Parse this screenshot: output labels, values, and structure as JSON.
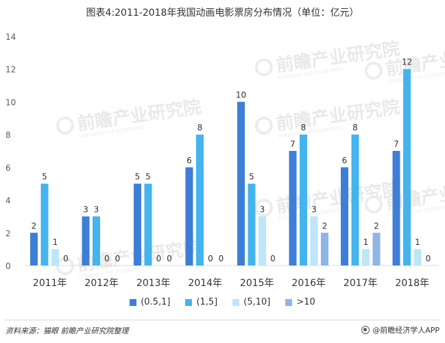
{
  "chart_data": {
    "type": "bar",
    "title": "图表4:2011-2018年我国动画电影票房分布情况（单位：亿元）",
    "categories": [
      "2011年",
      "2012年",
      "2013年",
      "2014年",
      "2015年",
      "2016年",
      "2017年",
      "2018年"
    ],
    "series": [
      {
        "name": "(0.5,1]",
        "color": "#3d7fd6",
        "values": [
          2,
          3,
          5,
          6,
          10,
          7,
          6,
          7
        ]
      },
      {
        "name": "(1,5]",
        "color": "#44b4ef",
        "values": [
          5,
          3,
          5,
          8,
          5,
          8,
          8,
          12
        ]
      },
      {
        "name": "(5,10]",
        "color": "#bde6fa",
        "values": [
          1,
          0,
          0,
          0,
          3,
          3,
          1,
          1
        ]
      },
      {
        "name": ">10",
        "color": "#8fb4e8",
        "values": [
          0,
          0,
          0,
          0,
          0,
          2,
          2,
          0
        ]
      }
    ],
    "yticks": [
      0,
      2,
      4,
      6,
      8,
      10,
      12,
      14
    ],
    "ylim": [
      0,
      14
    ],
    "grid": false,
    "legend_position": "bottom",
    "show_data_labels": true
  },
  "footer": {
    "source": "资料来源：猫眼  前瞻产业研究院整理",
    "brand": "@前瞻经济学人APP"
  },
  "watermark": {
    "text": "前瞻产业研究院",
    "subtext": "FORWARD THE ECONOMIST"
  }
}
